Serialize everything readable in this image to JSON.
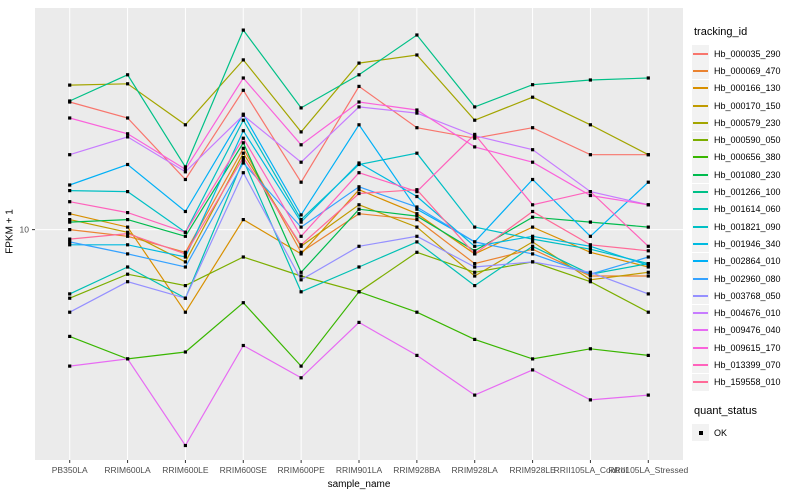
{
  "chart_data": {
    "type": "line",
    "title": "",
    "xlabel": "sample_name",
    "ylabel": "FPKM + 1",
    "y_scale": "log10",
    "ylim": [
      1.7,
      55
    ],
    "y_ticks": [
      {
        "label": "10",
        "value": 10
      }
    ],
    "grid": "major",
    "panel_background": "#EBEBEB",
    "gridline_color": "#FFFFFF",
    "axis_text_color": "#4D4D4D",
    "point_shape": "filled-square",
    "point_color": "#000000",
    "legend_position": "right",
    "legend_title": "tracking_id",
    "categories": [
      "PB350LA",
      "RRIM600LA",
      "RRIM600LE",
      "RRIM600SE",
      "RRIM600PE",
      "RRIM901LA",
      "RRIM928BA",
      "RRIM928LA",
      "RRIM928LE",
      "RRII105LA_Control",
      "RRII105LA_Stressed"
    ],
    "series": [
      {
        "name": "Hb_000035_290",
        "color": "#F8766D",
        "values": [
          26.7,
          23.6,
          14.7,
          29.2,
          14.4,
          30.1,
          21.9,
          20.2,
          21.9,
          17.8,
          17.8
        ]
      },
      {
        "name": "Hb_000069_470",
        "color": "#EA8331",
        "values": [
          10.0,
          9.5,
          8.4,
          18.7,
          8.4,
          11.3,
          10.8,
          7.7,
          8.6,
          7.0,
          7.0
        ]
      },
      {
        "name": "Hb_000166_130",
        "color": "#D89000",
        "values": [
          11.3,
          10.2,
          5.3,
          10.8,
          8.3,
          13.6,
          11.3,
          8.3,
          10.2,
          8.4,
          7.5
        ]
      },
      {
        "name": "Hb_000170_150",
        "color": "#C09B00",
        "values": [
          10.8,
          9.8,
          7.8,
          18.0,
          8.8,
          12.1,
          10.2,
          7.0,
          9.1,
          6.8,
          7.2
        ]
      },
      {
        "name": "Hb_000579_230",
        "color": "#A3A500",
        "values": [
          30.4,
          30.7,
          22.4,
          36.9,
          21.2,
          36.0,
          38.3,
          23.2,
          27.7,
          22.4,
          17.8
        ]
      },
      {
        "name": "Hb_000590_050",
        "color": "#7CAE00",
        "values": [
          5.9,
          7.1,
          6.5,
          8.1,
          7.0,
          6.2,
          8.4,
          7.2,
          7.8,
          6.7,
          5.3
        ]
      },
      {
        "name": "Hb_000656_380",
        "color": "#39B600",
        "values": [
          4.4,
          3.7,
          3.9,
          5.7,
          3.5,
          6.2,
          5.3,
          4.3,
          3.7,
          4.0,
          3.8
        ]
      },
      {
        "name": "Hb_001080_230",
        "color": "#00BB4E",
        "values": [
          10.6,
          10.8,
          9.5,
          19.5,
          7.2,
          11.7,
          11.1,
          8.5,
          11.0,
          10.6,
          10.2
        ]
      },
      {
        "name": "Hb_001266_100",
        "color": "#00C087",
        "values": [
          26.9,
          32.9,
          16.2,
          46.4,
          25.5,
          32.9,
          44.7,
          25.7,
          30.5,
          31.6,
          32.1
        ]
      },
      {
        "name": "Hb_001614_060",
        "color": "#00C0B4",
        "values": [
          6.1,
          7.5,
          5.9,
          17.1,
          6.2,
          7.5,
          9.1,
          6.5,
          8.8,
          7.1,
          7.7
        ]
      },
      {
        "name": "Hb_001821_090",
        "color": "#00BFC4",
        "values": [
          13.5,
          13.4,
          9.8,
          23.2,
          10.8,
          16.5,
          18.0,
          10.2,
          9.3,
          8.6,
          7.7
        ]
      },
      {
        "name": "Hb_001946_340",
        "color": "#00BAE0",
        "values": [
          8.9,
          8.9,
          8.1,
          21.4,
          10.6,
          16.7,
          12.9,
          8.8,
          9.5,
          8.8,
          7.6
        ]
      },
      {
        "name": "Hb_002864_010",
        "color": "#00B0F6",
        "values": [
          14.1,
          16.5,
          11.5,
          24.3,
          11.2,
          22.4,
          11.7,
          9.1,
          14.7,
          9.5,
          14.4
        ]
      },
      {
        "name": "Hb_002960_080",
        "color": "#35A2FF",
        "values": [
          9.1,
          8.3,
          7.5,
          16.7,
          10.2,
          13.9,
          11.9,
          9.1,
          8.3,
          7.1,
          8.1
        ]
      },
      {
        "name": "Hb_003768_050",
        "color": "#9590FF",
        "values": [
          5.3,
          6.7,
          5.9,
          15.5,
          6.8,
          8.8,
          9.5,
          7.5,
          7.8,
          7.2,
          6.1
        ]
      },
      {
        "name": "Hb_004676_010",
        "color": "#C77CFF",
        "values": [
          17.8,
          20.4,
          15.6,
          24.1,
          16.8,
          25.7,
          24.5,
          20.6,
          18.5,
          13.4,
          12.1
        ]
      },
      {
        "name": "Hb_009476_040",
        "color": "#E76BF3",
        "values": [
          3.5,
          3.7,
          1.9,
          4.1,
          3.2,
          4.9,
          3.8,
          2.8,
          3.4,
          2.7,
          2.8
        ]
      },
      {
        "name": "Hb_009615_170",
        "color": "#FA62DB",
        "values": [
          23.6,
          20.9,
          15.9,
          32.1,
          19.2,
          26.7,
          25.1,
          18.9,
          16.8,
          13.0,
          12.1
        ]
      },
      {
        "name": "Hb_013399_070",
        "color": "#FF62BC",
        "values": [
          12.4,
          11.4,
          9.8,
          20.2,
          9.5,
          15.5,
          13.4,
          20.8,
          12.1,
          13.4,
          8.8
        ]
      },
      {
        "name": "Hb_159558_010",
        "color": "#FF6A98",
        "values": [
          9.3,
          9.7,
          8.3,
          17.4,
          8.9,
          13.2,
          13.6,
          8.3,
          11.5,
          8.9,
          8.5
        ]
      }
    ],
    "quant_legend": {
      "title": "quant_status",
      "items": [
        {
          "label": "OK"
        }
      ]
    }
  }
}
